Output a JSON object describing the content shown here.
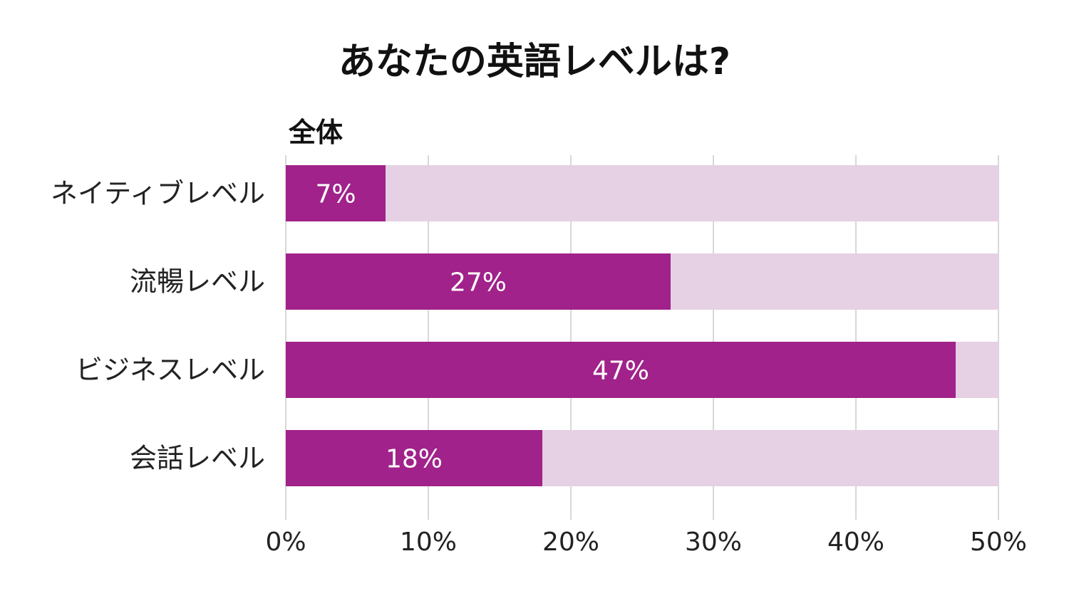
{
  "chart_data": {
    "type": "bar",
    "orientation": "horizontal",
    "title": "あなたの英語レベルは?",
    "subtitle": "全体",
    "categories": [
      "ネイティブレベル",
      "流暢レベル",
      "ビジネスレベル",
      "会話レベル"
    ],
    "values": [
      7,
      27,
      47,
      18
    ],
    "data_labels": [
      "7%",
      "27%",
      "47%",
      "18%"
    ],
    "xlim": [
      0,
      50
    ],
    "x_ticks": [
      0,
      10,
      20,
      30,
      40,
      50
    ],
    "x_tick_labels": [
      "0%",
      "10%",
      "20%",
      "30%",
      "40%",
      "50%"
    ],
    "grid": true,
    "colors": {
      "bar": "#a0228a",
      "track": "#e6d0e3",
      "grid": "#cccccc",
      "label_text": "#ffffff"
    }
  }
}
